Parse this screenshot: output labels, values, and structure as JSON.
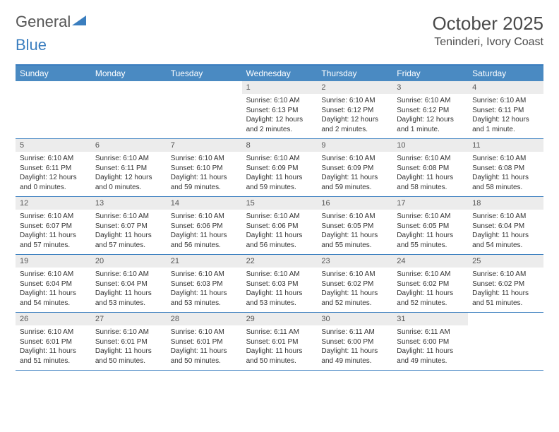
{
  "brand": {
    "part1": "General",
    "part2": "Blue"
  },
  "title": "October 2025",
  "location": "Teninderi, Ivory Coast",
  "colors": {
    "header_bg": "#4a8ac2",
    "border": "#3a7ebf",
    "daynum_bg": "#ececec",
    "text": "#333333",
    "muted": "#555555",
    "page_bg": "#ffffff"
  },
  "day_labels": [
    "Sunday",
    "Monday",
    "Tuesday",
    "Wednesday",
    "Thursday",
    "Friday",
    "Saturday"
  ],
  "weeks": [
    [
      {
        "n": "",
        "sun": "",
        "set": "",
        "day": ""
      },
      {
        "n": "",
        "sun": "",
        "set": "",
        "day": ""
      },
      {
        "n": "",
        "sun": "",
        "set": "",
        "day": ""
      },
      {
        "n": "1",
        "sun": "Sunrise: 6:10 AM",
        "set": "Sunset: 6:13 PM",
        "day": "Daylight: 12 hours and 2 minutes."
      },
      {
        "n": "2",
        "sun": "Sunrise: 6:10 AM",
        "set": "Sunset: 6:12 PM",
        "day": "Daylight: 12 hours and 2 minutes."
      },
      {
        "n": "3",
        "sun": "Sunrise: 6:10 AM",
        "set": "Sunset: 6:12 PM",
        "day": "Daylight: 12 hours and 1 minute."
      },
      {
        "n": "4",
        "sun": "Sunrise: 6:10 AM",
        "set": "Sunset: 6:11 PM",
        "day": "Daylight: 12 hours and 1 minute."
      }
    ],
    [
      {
        "n": "5",
        "sun": "Sunrise: 6:10 AM",
        "set": "Sunset: 6:11 PM",
        "day": "Daylight: 12 hours and 0 minutes."
      },
      {
        "n": "6",
        "sun": "Sunrise: 6:10 AM",
        "set": "Sunset: 6:11 PM",
        "day": "Daylight: 12 hours and 0 minutes."
      },
      {
        "n": "7",
        "sun": "Sunrise: 6:10 AM",
        "set": "Sunset: 6:10 PM",
        "day": "Daylight: 11 hours and 59 minutes."
      },
      {
        "n": "8",
        "sun": "Sunrise: 6:10 AM",
        "set": "Sunset: 6:09 PM",
        "day": "Daylight: 11 hours and 59 minutes."
      },
      {
        "n": "9",
        "sun": "Sunrise: 6:10 AM",
        "set": "Sunset: 6:09 PM",
        "day": "Daylight: 11 hours and 59 minutes."
      },
      {
        "n": "10",
        "sun": "Sunrise: 6:10 AM",
        "set": "Sunset: 6:08 PM",
        "day": "Daylight: 11 hours and 58 minutes."
      },
      {
        "n": "11",
        "sun": "Sunrise: 6:10 AM",
        "set": "Sunset: 6:08 PM",
        "day": "Daylight: 11 hours and 58 minutes."
      }
    ],
    [
      {
        "n": "12",
        "sun": "Sunrise: 6:10 AM",
        "set": "Sunset: 6:07 PM",
        "day": "Daylight: 11 hours and 57 minutes."
      },
      {
        "n": "13",
        "sun": "Sunrise: 6:10 AM",
        "set": "Sunset: 6:07 PM",
        "day": "Daylight: 11 hours and 57 minutes."
      },
      {
        "n": "14",
        "sun": "Sunrise: 6:10 AM",
        "set": "Sunset: 6:06 PM",
        "day": "Daylight: 11 hours and 56 minutes."
      },
      {
        "n": "15",
        "sun": "Sunrise: 6:10 AM",
        "set": "Sunset: 6:06 PM",
        "day": "Daylight: 11 hours and 56 minutes."
      },
      {
        "n": "16",
        "sun": "Sunrise: 6:10 AM",
        "set": "Sunset: 6:05 PM",
        "day": "Daylight: 11 hours and 55 minutes."
      },
      {
        "n": "17",
        "sun": "Sunrise: 6:10 AM",
        "set": "Sunset: 6:05 PM",
        "day": "Daylight: 11 hours and 55 minutes."
      },
      {
        "n": "18",
        "sun": "Sunrise: 6:10 AM",
        "set": "Sunset: 6:04 PM",
        "day": "Daylight: 11 hours and 54 minutes."
      }
    ],
    [
      {
        "n": "19",
        "sun": "Sunrise: 6:10 AM",
        "set": "Sunset: 6:04 PM",
        "day": "Daylight: 11 hours and 54 minutes."
      },
      {
        "n": "20",
        "sun": "Sunrise: 6:10 AM",
        "set": "Sunset: 6:04 PM",
        "day": "Daylight: 11 hours and 53 minutes."
      },
      {
        "n": "21",
        "sun": "Sunrise: 6:10 AM",
        "set": "Sunset: 6:03 PM",
        "day": "Daylight: 11 hours and 53 minutes."
      },
      {
        "n": "22",
        "sun": "Sunrise: 6:10 AM",
        "set": "Sunset: 6:03 PM",
        "day": "Daylight: 11 hours and 53 minutes."
      },
      {
        "n": "23",
        "sun": "Sunrise: 6:10 AM",
        "set": "Sunset: 6:02 PM",
        "day": "Daylight: 11 hours and 52 minutes."
      },
      {
        "n": "24",
        "sun": "Sunrise: 6:10 AM",
        "set": "Sunset: 6:02 PM",
        "day": "Daylight: 11 hours and 52 minutes."
      },
      {
        "n": "25",
        "sun": "Sunrise: 6:10 AM",
        "set": "Sunset: 6:02 PM",
        "day": "Daylight: 11 hours and 51 minutes."
      }
    ],
    [
      {
        "n": "26",
        "sun": "Sunrise: 6:10 AM",
        "set": "Sunset: 6:01 PM",
        "day": "Daylight: 11 hours and 51 minutes."
      },
      {
        "n": "27",
        "sun": "Sunrise: 6:10 AM",
        "set": "Sunset: 6:01 PM",
        "day": "Daylight: 11 hours and 50 minutes."
      },
      {
        "n": "28",
        "sun": "Sunrise: 6:10 AM",
        "set": "Sunset: 6:01 PM",
        "day": "Daylight: 11 hours and 50 minutes."
      },
      {
        "n": "29",
        "sun": "Sunrise: 6:11 AM",
        "set": "Sunset: 6:01 PM",
        "day": "Daylight: 11 hours and 50 minutes."
      },
      {
        "n": "30",
        "sun": "Sunrise: 6:11 AM",
        "set": "Sunset: 6:00 PM",
        "day": "Daylight: 11 hours and 49 minutes."
      },
      {
        "n": "31",
        "sun": "Sunrise: 6:11 AM",
        "set": "Sunset: 6:00 PM",
        "day": "Daylight: 11 hours and 49 minutes."
      },
      {
        "n": "",
        "sun": "",
        "set": "",
        "day": ""
      }
    ]
  ]
}
